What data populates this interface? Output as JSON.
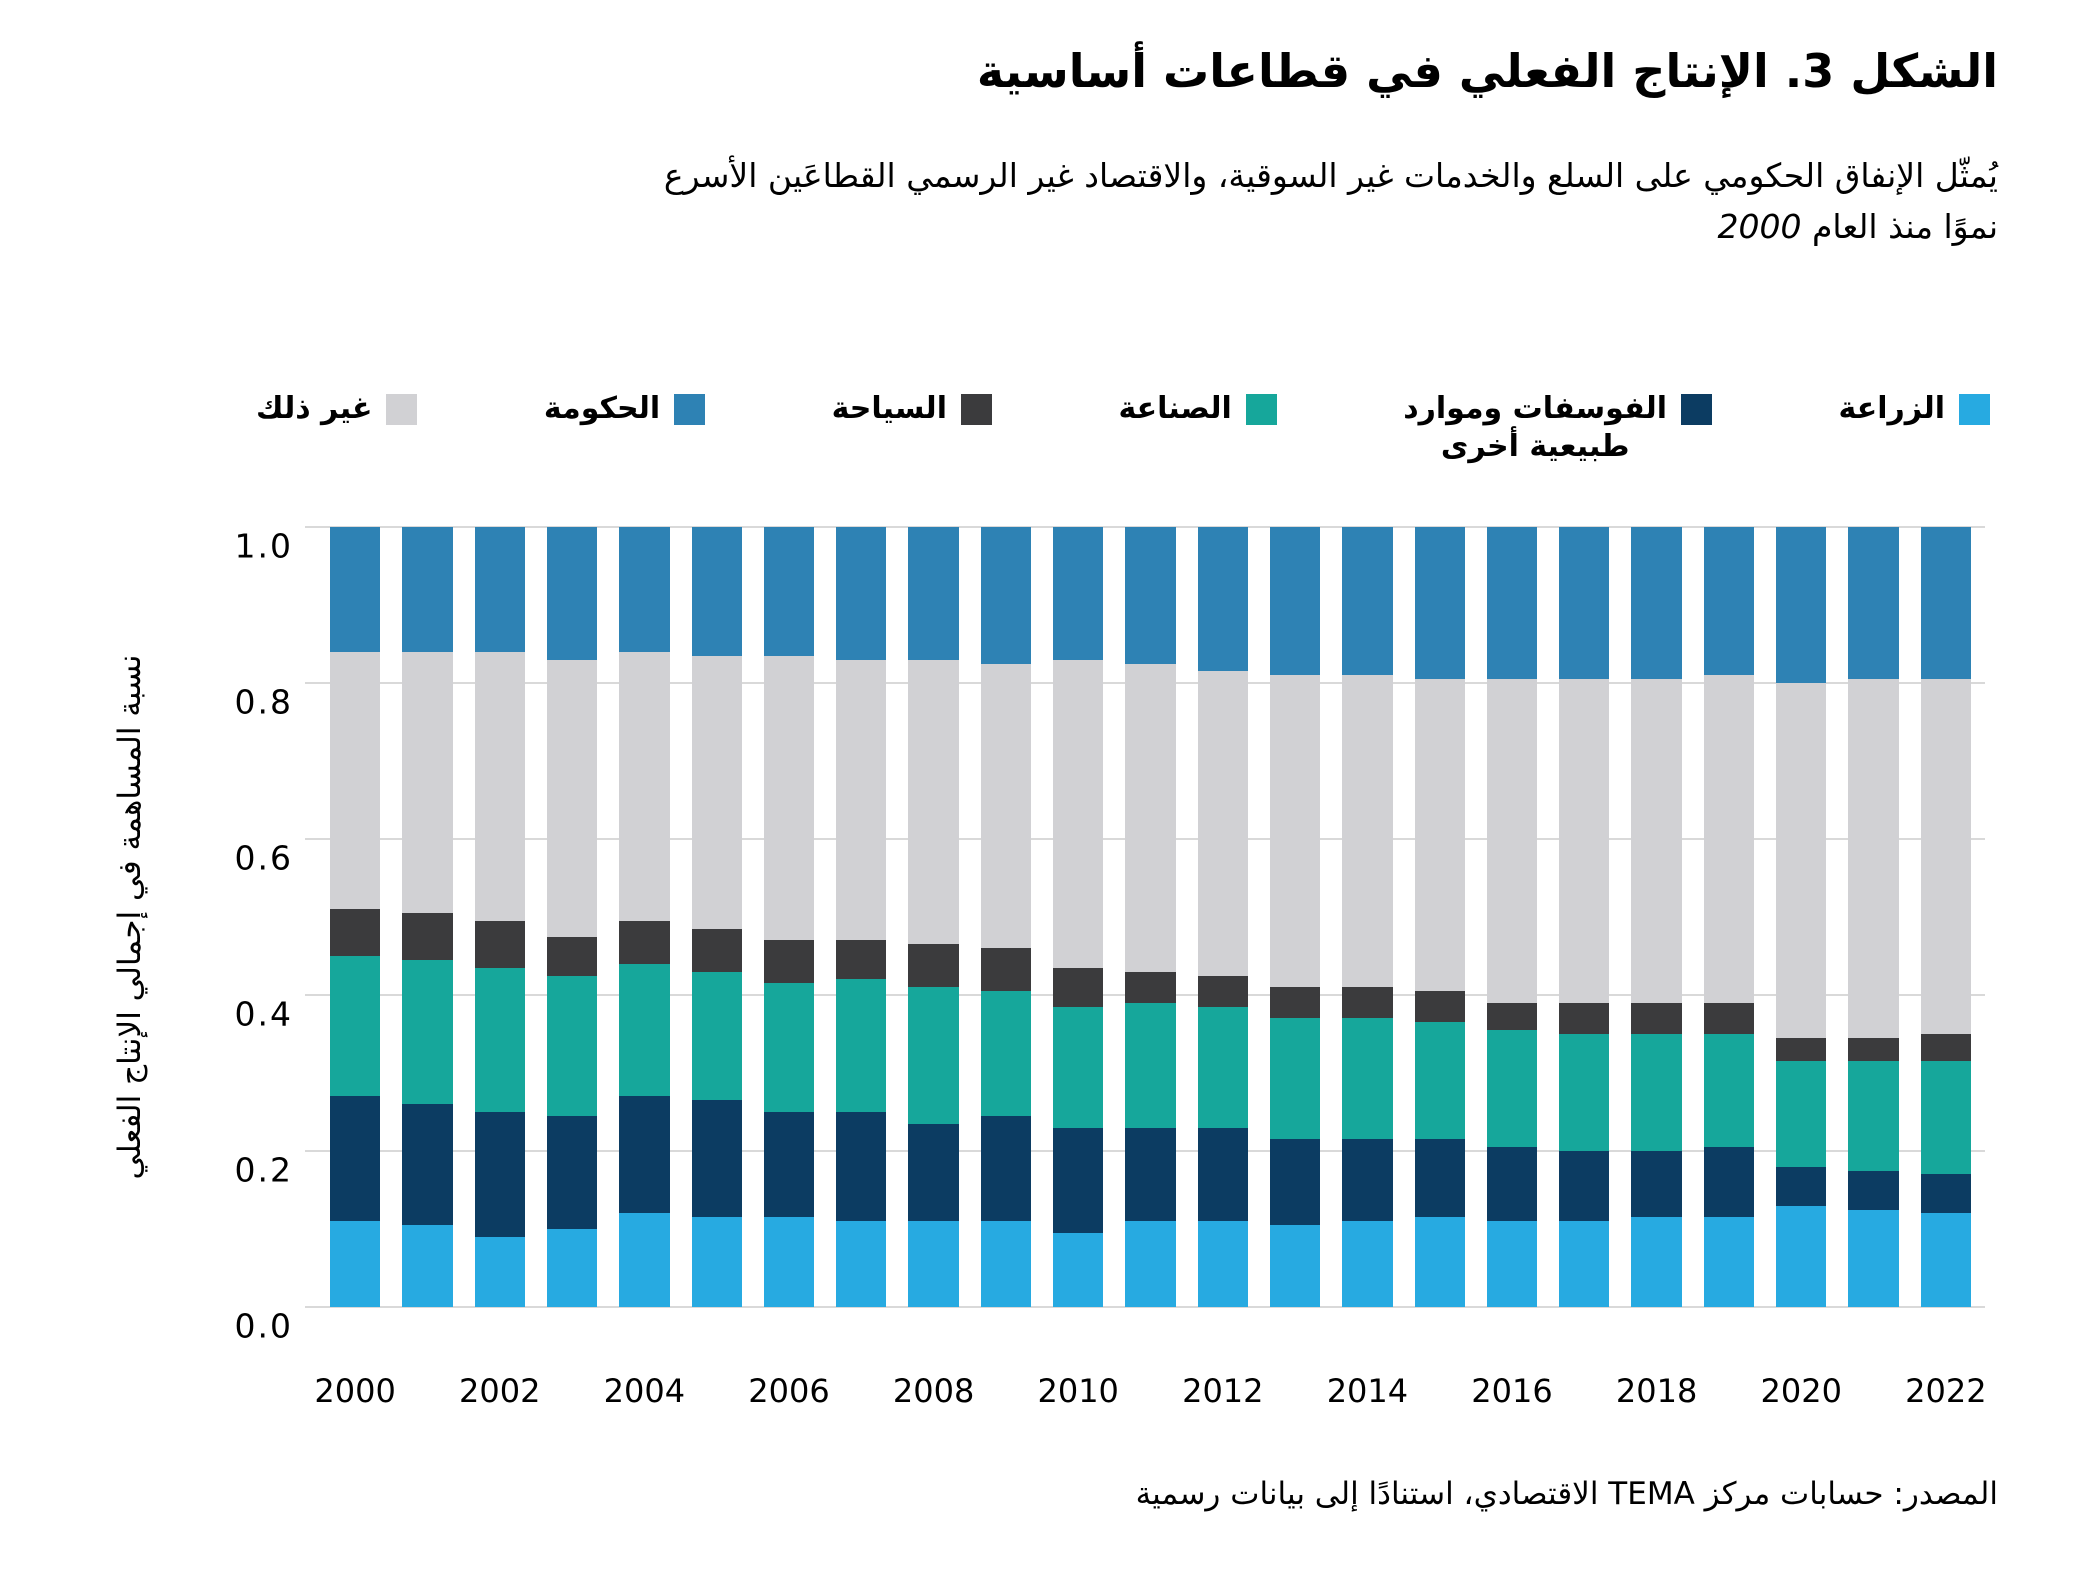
{
  "title": "الشكل 3. الإنتاج الفعلي في قطاعات أساسية",
  "subtitle": {
    "line1": "يُمثّل الإنفاق الحكومي على السلع والخدمات غير السوقية، والاقتصاد غير الرسمي القطاعَين الأسرع",
    "line2_text": "نموًا منذ العام",
    "line2_year_italic": "2000"
  },
  "source": "المصدر: حسابات مركز TEMA الاقتصادي، استنادًا إلى بيانات رسمية",
  "colors": {
    "agriculture": "#27AAE1",
    "phosphates": "#0C3C62",
    "industry": "#16A79B",
    "tourism": "#3B3B3D",
    "other": "#D1D1D4",
    "government": "#2E82B4",
    "gridline": "#D9D9D9",
    "background": "#FFFFFF",
    "text": "#000000"
  },
  "legend": [
    {
      "label": "الزراعة",
      "lines": [
        "الزراعة"
      ],
      "color": "#27AAE1"
    },
    {
      "label": "الفوسفات وموارد طبيعية أخرى",
      "lines": [
        "الفوسفات وموارد",
        "طبيعية أخرى"
      ],
      "color": "#0C3C62"
    },
    {
      "label": "الصناعة",
      "lines": [
        "الصناعة"
      ],
      "color": "#16A79B"
    },
    {
      "label": "السياحة",
      "lines": [
        "السياحة"
      ],
      "color": "#3B3B3D"
    },
    {
      "label": "الحكومة",
      "lines": [
        "الحكومة"
      ],
      "color": "#2E82B4"
    },
    {
      "label": "غير ذلك",
      "lines": [
        "غير ذلك"
      ],
      "color": "#D1D1D4"
    }
  ],
  "chart_data": {
    "type": "bar",
    "stacked": true,
    "normalized": true,
    "title": "الشكل 3. الإنتاج الفعلي في قطاعات أساسية",
    "ylabel": "نسبة المساهمة في إجمالي الإنتاج الفعلي",
    "xlabel": "",
    "ylim": [
      0,
      1.0
    ],
    "grid": true,
    "legend_position": "top",
    "x": [
      2000,
      2001,
      2002,
      2003,
      2004,
      2005,
      2006,
      2007,
      2008,
      2009,
      2010,
      2011,
      2012,
      2013,
      2014,
      2015,
      2016,
      2017,
      2018,
      2019,
      2020,
      2021,
      2022
    ],
    "xtick_labels": [
      "2000",
      "2002",
      "2004",
      "2006",
      "2008",
      "2010",
      "2012",
      "2014",
      "2016",
      "2018",
      "2020",
      "2022"
    ],
    "yticks": [
      {
        "label": "1.0",
        "value": 1.0
      },
      {
        "label": "0.8",
        "value": 0.8
      },
      {
        "label": "0.6",
        "value": 0.6
      },
      {
        "label": "0.4",
        "value": 0.4
      },
      {
        "label": "0.2",
        "value": 0.2
      },
      {
        "label": "0.0",
        "value": 0.0
      }
    ],
    "series": [
      {
        "name": "الزراعة",
        "key": "agriculture",
        "color": "#27AAE1",
        "values": [
          0.11,
          0.105,
          0.09,
          0.1,
          0.12,
          0.115,
          0.115,
          0.11,
          0.11,
          0.11,
          0.095,
          0.11,
          0.11,
          0.105,
          0.11,
          0.115,
          0.11,
          0.11,
          0.115,
          0.115,
          0.13,
          0.125,
          0.12
        ]
      },
      {
        "name": "الفوسفات وموارد طبيعية أخرى",
        "key": "phosphates",
        "color": "#0C3C62",
        "values": [
          0.16,
          0.155,
          0.16,
          0.145,
          0.15,
          0.15,
          0.135,
          0.14,
          0.125,
          0.135,
          0.135,
          0.12,
          0.12,
          0.11,
          0.105,
          0.1,
          0.095,
          0.09,
          0.085,
          0.09,
          0.05,
          0.05,
          0.05
        ]
      },
      {
        "name": "الصناعة",
        "key": "industry",
        "color": "#16A79B",
        "values": [
          0.18,
          0.185,
          0.185,
          0.18,
          0.17,
          0.165,
          0.165,
          0.17,
          0.175,
          0.16,
          0.155,
          0.16,
          0.155,
          0.155,
          0.155,
          0.15,
          0.15,
          0.15,
          0.15,
          0.145,
          0.135,
          0.14,
          0.145
        ]
      },
      {
        "name": "السياحة",
        "key": "tourism",
        "color": "#3B3B3D",
        "values": [
          0.06,
          0.06,
          0.06,
          0.05,
          0.055,
          0.055,
          0.055,
          0.05,
          0.055,
          0.055,
          0.05,
          0.04,
          0.04,
          0.04,
          0.04,
          0.04,
          0.035,
          0.04,
          0.04,
          0.04,
          0.03,
          0.03,
          0.035
        ]
      },
      {
        "name": "غير ذلك",
        "key": "other",
        "color": "#D1D1D4",
        "values": [
          0.33,
          0.335,
          0.345,
          0.355,
          0.345,
          0.35,
          0.365,
          0.36,
          0.365,
          0.365,
          0.395,
          0.395,
          0.39,
          0.4,
          0.4,
          0.4,
          0.415,
          0.415,
          0.415,
          0.42,
          0.455,
          0.46,
          0.455
        ]
      },
      {
        "name": "الحكومة",
        "key": "government",
        "color": "#2E82B4",
        "values": [
          0.16,
          0.16,
          0.16,
          0.17,
          0.16,
          0.165,
          0.165,
          0.17,
          0.17,
          0.175,
          0.17,
          0.175,
          0.185,
          0.19,
          0.19,
          0.195,
          0.195,
          0.195,
          0.195,
          0.19,
          0.2,
          0.195,
          0.195
        ]
      }
    ]
  }
}
